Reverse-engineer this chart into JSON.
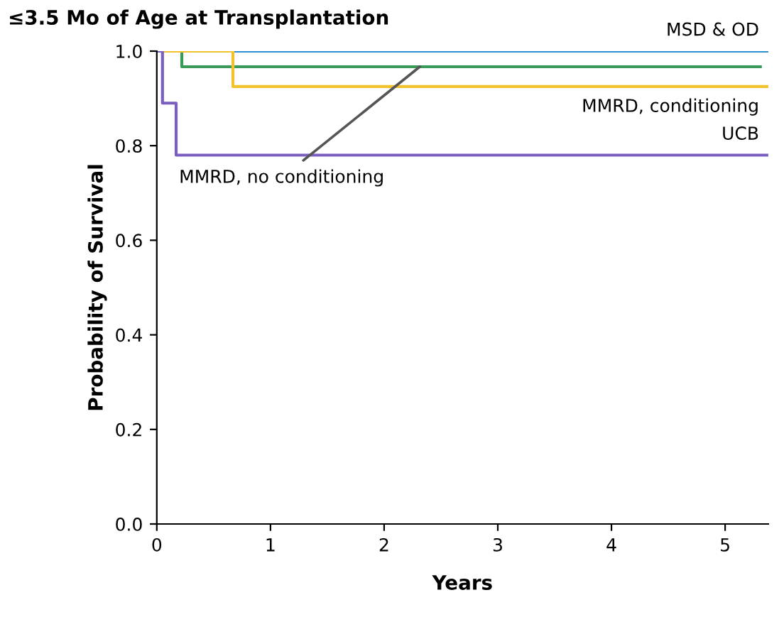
{
  "chart_data": {
    "type": "step",
    "title": "≤3.5 Mo of Age at Transplantation",
    "xlabel": "Years",
    "ylabel": "Probability of Survival",
    "series": [
      {
        "name": "MSD & OD",
        "color": "#2a8fd0",
        "x": [
          0,
          5.38
        ],
        "values": [
          1.0,
          1.0
        ]
      },
      {
        "name": "MMRD, no conditioning",
        "color": "#3a9a5a",
        "x": [
          0,
          0.22,
          5.31
        ],
        "values": [
          1.0,
          0.967,
          0.967
        ]
      },
      {
        "name": "MMRD, conditioning",
        "color": "#f2c12e",
        "x": [
          0,
          0.67,
          5.38
        ],
        "values": [
          1.0,
          0.925,
          0.925
        ]
      },
      {
        "name": "UCB",
        "color": "#7b5fc0",
        "x": [
          0,
          0.05,
          0.17,
          5.38
        ],
        "values": [
          1.0,
          0.89,
          0.78,
          0.78
        ]
      }
    ],
    "xlim": [
      0,
      5.38
    ],
    "ylim": [
      0,
      1.0
    ],
    "xticks": [
      0,
      1,
      2,
      3,
      4,
      5
    ],
    "yticks": [
      {
        "value": 0,
        "label": "0.0"
      },
      0.2,
      0.4,
      0.6,
      0.8,
      {
        "value": 1,
        "label": "1.0"
      }
    ],
    "grid": false,
    "legend": false
  }
}
